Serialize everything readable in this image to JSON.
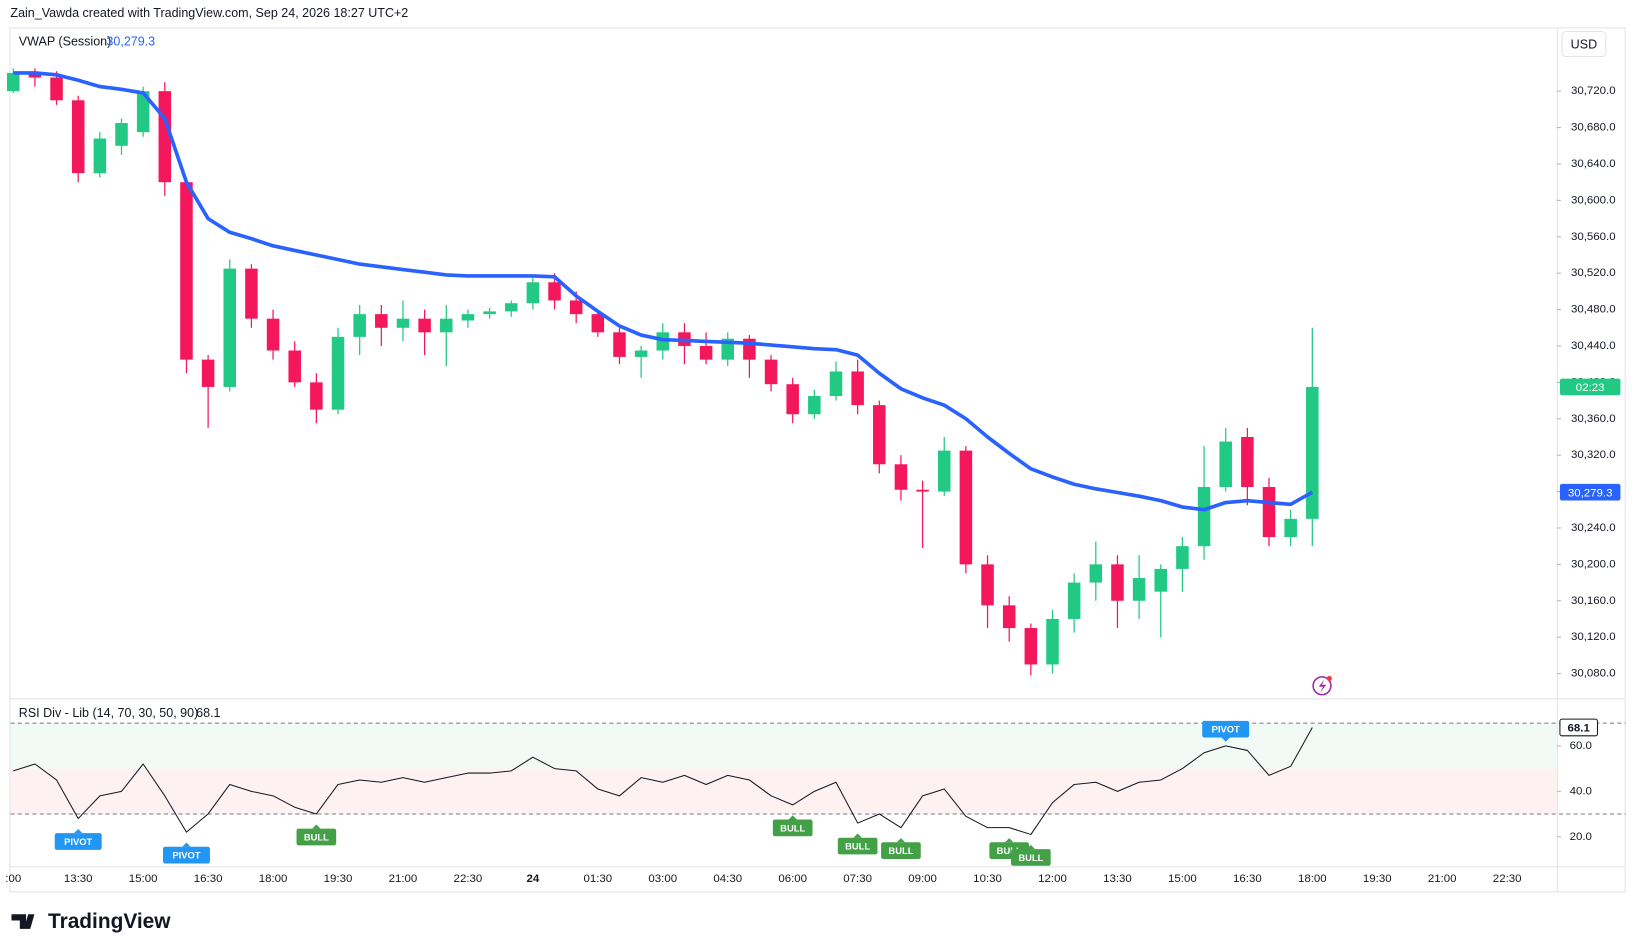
{
  "chart_data": {
    "type": "candlestick",
    "header": "Zain_Vawda created with TradingView.com, Sep 24, 2026 18:27 UTC+2",
    "currency": "USD",
    "brand": "TradingView",
    "categories": [
      ":00",
      null,
      null,
      "13:30",
      null,
      null,
      "15:00",
      null,
      null,
      "16:30",
      null,
      null,
      "18:00",
      null,
      null,
      "19:30",
      null,
      null,
      "21:00",
      null,
      null,
      "22:30",
      null,
      null,
      "24",
      null,
      null,
      "01:30",
      null,
      null,
      "03:00",
      null,
      null,
      "04:30",
      null,
      null,
      "06:00",
      null,
      null,
      "07:30",
      null,
      null,
      "09:00",
      null,
      null,
      "10:30",
      null,
      null,
      "12:00",
      null,
      null,
      "13:30",
      null,
      null,
      "15:00",
      null,
      null,
      "16:30",
      null,
      null,
      "18:00",
      null,
      null,
      "19:30",
      null,
      null,
      "21:00",
      null,
      null,
      "22:30"
    ],
    "open": [
      30720,
      30740,
      30735,
      30710,
      30630,
      30660,
      30675,
      30720,
      30620,
      30425,
      30395,
      30525,
      30470,
      30435,
      30400,
      30370,
      30450,
      30475,
      30460,
      30470,
      30455,
      30468,
      30475,
      30478,
      30487,
      30510,
      30490,
      30475,
      30455,
      30428,
      30435,
      30455,
      30440,
      30425,
      30448,
      30425,
      30398,
      30365,
      30385,
      30412,
      30375,
      30310,
      30282,
      30280,
      30325,
      30200,
      30155,
      30130,
      30090,
      30140,
      30180,
      30200,
      30160,
      30170,
      30195,
      30220,
      30285,
      30340,
      30285,
      30230,
      30250,
      null,
      null,
      null,
      null,
      null,
      null,
      null,
      null,
      null
    ],
    "high": [
      30745,
      30745,
      30742,
      30715,
      30675,
      30690,
      30725,
      30730,
      30625,
      30430,
      30535,
      30530,
      30480,
      30445,
      30410,
      30460,
      30485,
      30485,
      30490,
      30480,
      30485,
      30480,
      30482,
      30490,
      30515,
      30520,
      30500,
      30480,
      30460,
      30440,
      30465,
      30465,
      30455,
      30455,
      30452,
      30430,
      30405,
      30392,
      30423,
      30425,
      30380,
      30320,
      30292,
      30340,
      30330,
      30210,
      30165,
      30135,
      30150,
      30190,
      30225,
      30210,
      30210,
      30200,
      30230,
      30330,
      30350,
      30350,
      30295,
      30260,
      30460,
      null,
      null,
      null,
      null,
      null,
      null,
      null,
      null,
      null
    ],
    "low": [
      30718,
      30725,
      30705,
      30620,
      30625,
      30650,
      30670,
      30605,
      30410,
      30350,
      30390,
      30460,
      30425,
      30395,
      30355,
      30365,
      30430,
      30440,
      30445,
      30430,
      30418,
      30460,
      30470,
      30472,
      30480,
      30480,
      30465,
      30450,
      30420,
      30405,
      30425,
      30420,
      30420,
      30418,
      30405,
      30390,
      30355,
      30360,
      30380,
      30365,
      30300,
      30270,
      30218,
      30275,
      30190,
      30130,
      30115,
      30078,
      30080,
      30125,
      30160,
      30130,
      30140,
      30120,
      30170,
      30205,
      30280,
      30265,
      30220,
      30220,
      30220,
      null,
      null,
      null,
      null,
      null,
      null,
      null,
      null,
      null
    ],
    "close": [
      30740,
      30735,
      30710,
      30630,
      30668,
      30685,
      30720,
      30620,
      30425,
      30395,
      30525,
      30470,
      30435,
      30400,
      30370,
      30450,
      30475,
      30460,
      30470,
      30455,
      30470,
      30475,
      30478,
      30487,
      30510,
      30490,
      30475,
      30455,
      30428,
      30435,
      30455,
      30440,
      30425,
      30448,
      30425,
      30398,
      30365,
      30385,
      30412,
      30375,
      30310,
      30282,
      30280,
      30325,
      30200,
      30155,
      30130,
      30090,
      30140,
      30180,
      30200,
      30160,
      30185,
      30195,
      30220,
      30285,
      30335,
      30285,
      30230,
      30250,
      30395,
      null,
      null,
      null,
      null,
      null,
      null,
      null,
      null,
      null
    ],
    "up_color": "#22c985",
    "down_color": "#f5175c",
    "countdown": "02:23",
    "ylim": [
      30054,
      30789
    ],
    "yticks": [
      {
        "value": 30080,
        "label": "30,080.0"
      },
      {
        "value": 30120,
        "label": "30,120.0"
      },
      {
        "value": 30160,
        "label": "30,160.0"
      },
      {
        "value": 30200,
        "label": "30,200.0"
      },
      {
        "value": 30240,
        "label": "30,240.0"
      },
      {
        "value": 30280,
        "label": "30,280.0"
      },
      {
        "value": 30320,
        "label": "30,320.0"
      },
      {
        "value": 30360,
        "label": "30,360.0"
      },
      {
        "value": 30400,
        "label": "30,400.0"
      },
      {
        "value": 30440,
        "label": "30,440.0"
      },
      {
        "value": 30480,
        "label": "30,480.0"
      },
      {
        "value": 30520,
        "label": "30,520.0"
      },
      {
        "value": 30560,
        "label": "30,560.0"
      },
      {
        "value": 30600,
        "label": "30,600.0"
      },
      {
        "value": 30640,
        "label": "30,640.0"
      },
      {
        "value": 30680,
        "label": "30,680.0"
      },
      {
        "value": 30720,
        "label": "30,720.0"
      }
    ],
    "vwap": {
      "name": "VWAP (Session)",
      "color": "#2962ff",
      "last_label": "30,279.3",
      "values": [
        30740,
        30740,
        30738,
        30732,
        30725,
        30722,
        30718,
        30690,
        30620,
        30580,
        30565,
        30558,
        30550,
        30545,
        30540,
        30535,
        30530,
        30527,
        30524,
        30521,
        30518,
        30517,
        30517,
        30517,
        30517,
        30516,
        30495,
        30478,
        30462,
        30452,
        30447,
        30446,
        30445,
        30444,
        30443,
        30441,
        30439,
        30437,
        30436,
        30430,
        30410,
        30393,
        30383,
        30375,
        30360,
        30340,
        30322,
        30305,
        30296,
        30288,
        30283,
        30279,
        30275,
        30270,
        30263,
        30260,
        30268,
        30270,
        30268,
        30266,
        30279.3,
        null,
        null,
        null,
        null,
        null,
        null,
        null,
        null,
        null
      ]
    },
    "rsi": {
      "name": "RSI Div - Lib (14, 70, 30, 50, 90)",
      "color": "#131722",
      "last_label": "68.1",
      "values": [
        49,
        52,
        45,
        28,
        38,
        40,
        52,
        38,
        22,
        30,
        43,
        40,
        38,
        33,
        30,
        43,
        45,
        44,
        46,
        44,
        46,
        48,
        48,
        49,
        55,
        50,
        49,
        41,
        38,
        46,
        44,
        47,
        43,
        47,
        45,
        38,
        34,
        40,
        44,
        26,
        30,
        24,
        38,
        41,
        29,
        24,
        24,
        21,
        35,
        43,
        44,
        40,
        44,
        45,
        50,
        57,
        60,
        58,
        47,
        51,
        68.1,
        null,
        null,
        null,
        null,
        null,
        null,
        null,
        null,
        null
      ],
      "upper": 70,
      "mid": 50,
      "lower": 30,
      "ylim": [
        7,
        80.5
      ],
      "yticks": [
        {
          "value": 20,
          "label": "20.0"
        },
        {
          "value": 40,
          "label": "40.0"
        },
        {
          "value": 60,
          "label": "60.0"
        }
      ],
      "signals": [
        {
          "label": "PIVOT",
          "at": 3,
          "position": "below",
          "color": "#2196f3"
        },
        {
          "label": "PIVOT",
          "at": 8,
          "position": "below",
          "color": "#2196f3"
        },
        {
          "label": "BULL",
          "at": 14,
          "position": "below",
          "color": "#43a047"
        },
        {
          "label": "BULL",
          "at": 36,
          "position": "below",
          "color": "#43a047"
        },
        {
          "label": "BULL",
          "at": 39,
          "position": "below",
          "color": "#43a047"
        },
        {
          "label": "BULL",
          "at": 41,
          "position": "below",
          "color": "#43a047"
        },
        {
          "label": "BULL",
          "at": 46,
          "position": "below",
          "color": "#43a047"
        },
        {
          "label": "BULL",
          "at": 47,
          "position": "below",
          "color": "#43a047"
        },
        {
          "label": "PIVOT",
          "at": 56,
          "position": "above",
          "color": "#2196f3"
        }
      ]
    }
  }
}
